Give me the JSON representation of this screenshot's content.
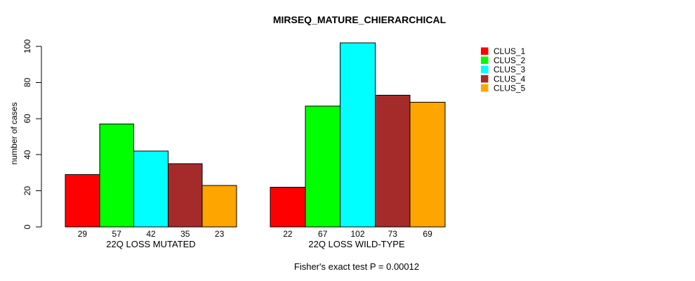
{
  "title": "MIRSEQ_MATURE_CHIERARCHICAL",
  "footer": "Fisher's exact test P = 0.00012",
  "chart_data": {
    "type": "bar",
    "title": "MIRSEQ_MATURE_CHIERARCHICAL",
    "xlabel": "",
    "ylabel": "number of cases",
    "ylim": [
      0,
      100
    ],
    "yticks": [
      0,
      20,
      40,
      60,
      80,
      100
    ],
    "grid": false,
    "legend_position": "top-right",
    "bar_value_labels": true,
    "categories": [
      "22Q LOSS MUTATED",
      "22Q LOSS WILD-TYPE"
    ],
    "series": [
      {
        "name": "CLUS_1",
        "color": "#FF0000",
        "values": [
          29,
          22
        ]
      },
      {
        "name": "CLUS_2",
        "color": "#00FF00",
        "values": [
          57,
          67
        ]
      },
      {
        "name": "CLUS_3",
        "color": "#00FFFF",
        "values": [
          42,
          102
        ]
      },
      {
        "name": "CLUS_4",
        "color": "#A52A2A",
        "values": [
          35,
          73
        ]
      },
      {
        "name": "CLUS_5",
        "color": "#FFA500",
        "values": [
          23,
          69
        ]
      }
    ],
    "annotation": "Fisher's exact test P = 0.00012",
    "axis_color": "#000000",
    "bar_border_color": "#000000",
    "background_color": "#FFFFFF"
  }
}
